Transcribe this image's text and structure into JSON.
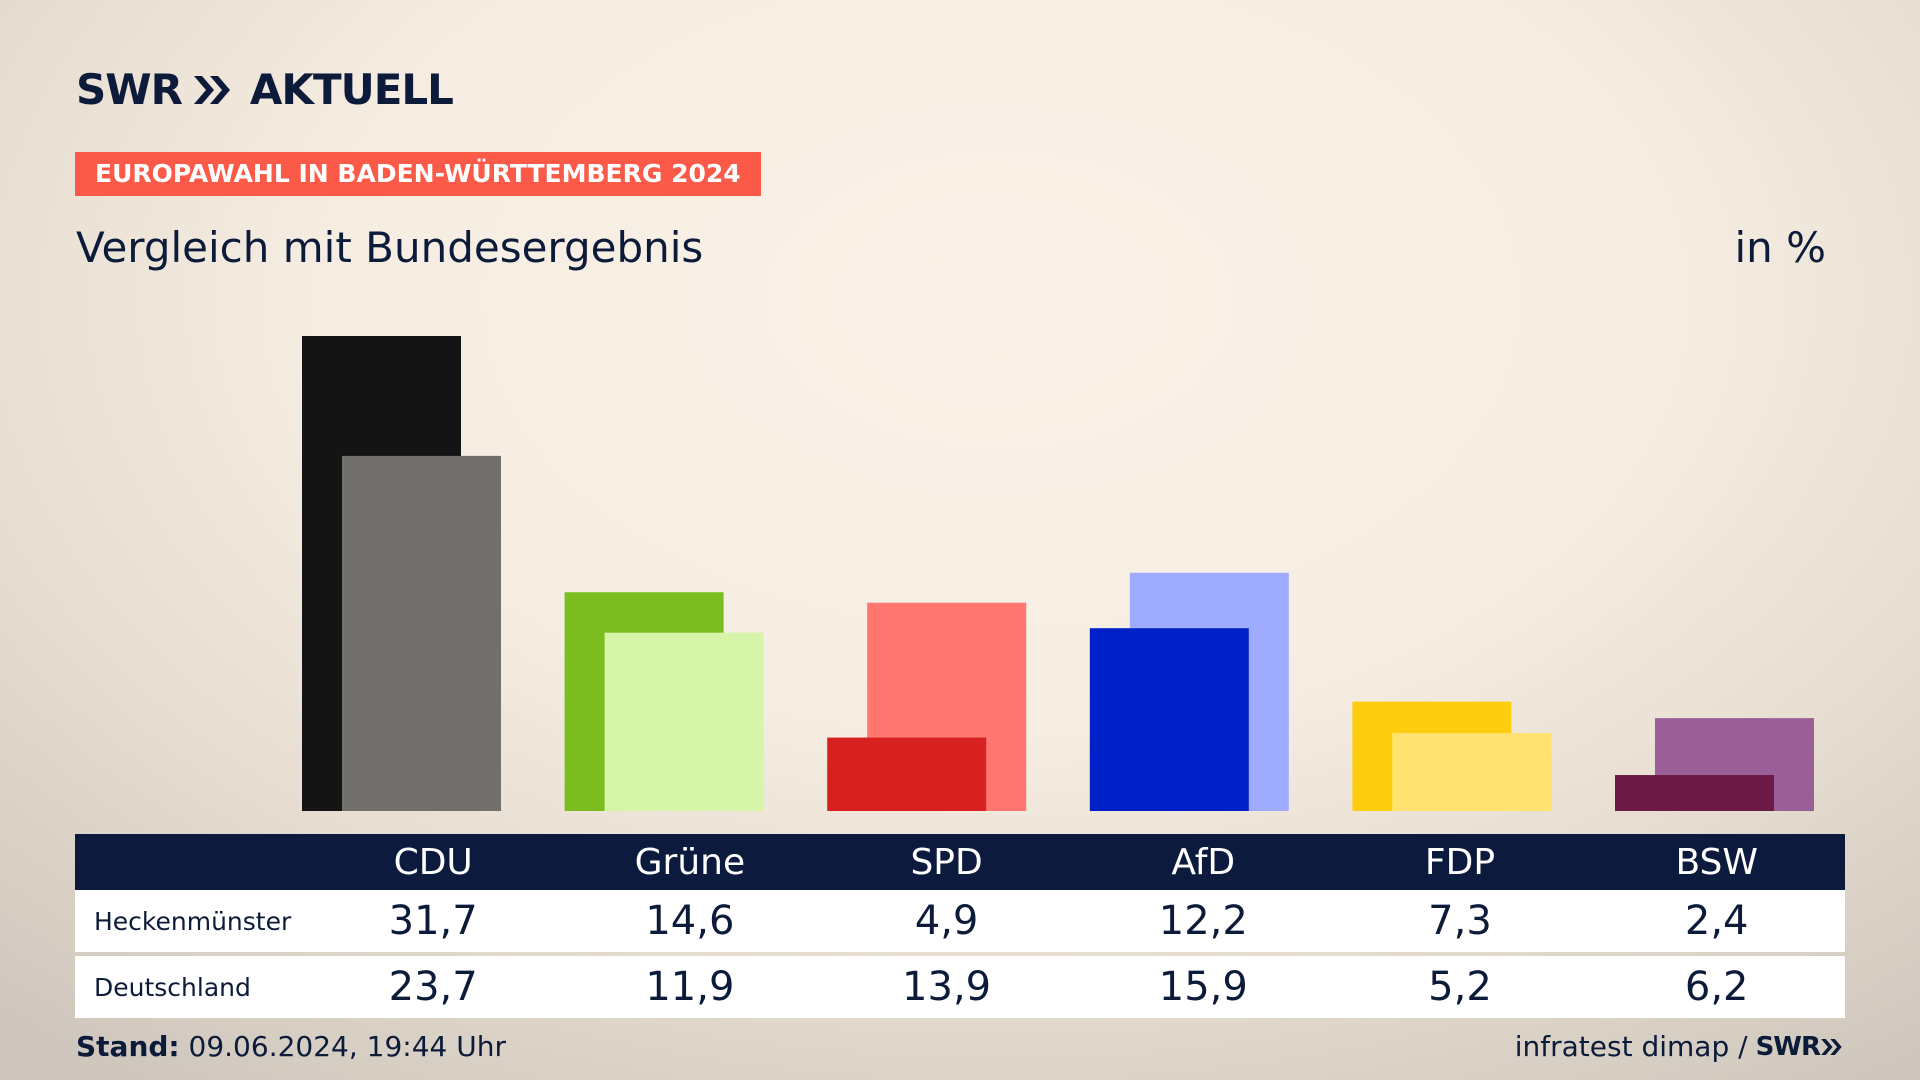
{
  "brand": {
    "swr": "SWR",
    "aktuell": "AKTUELL"
  },
  "badge": "EUROPAWAHL IN BADEN-WÜRTTEMBERG 2024",
  "subtitle": "Vergleich mit Bundesergebnis",
  "unit": "in %",
  "table": {
    "headers": [
      "CDU",
      "Grüne",
      "SPD",
      "AfD",
      "FDP",
      "BSW"
    ],
    "rows": [
      {
        "label": "Heckenmünster",
        "values": [
          "31,7",
          "14,6",
          "4,9",
          "12,2",
          "7,3",
          "2,4"
        ]
      },
      {
        "label": "Deutschland",
        "values": [
          "23,7",
          "11,9",
          "13,9",
          "15,9",
          "5,2",
          "6,2"
        ]
      }
    ]
  },
  "footer": {
    "stand_label": "Stand:",
    "stand_value": "09.06.2024, 19:44 Uhr",
    "source": "infratest dimap /",
    "source_brand": "SWR"
  },
  "colors": {
    "navy": "#0c1b3d",
    "badge": "#fb5a48"
  },
  "chart_data": {
    "type": "bar",
    "categories": [
      "CDU",
      "Grüne",
      "SPD",
      "AfD",
      "FDP",
      "BSW"
    ],
    "series": [
      {
        "name": "Heckenmünster",
        "values": [
          31.7,
          14.6,
          4.9,
          12.2,
          7.3,
          2.4
        ],
        "colors": [
          "#141414",
          "#7bbd1f",
          "#d72020",
          "#0021c8",
          "#ffcd0f",
          "#6a1a45"
        ]
      },
      {
        "name": "Deutschland",
        "values": [
          23.7,
          11.9,
          13.9,
          15.9,
          5.2,
          6.2
        ],
        "colors": [
          "#72706d",
          "#d7f5a8",
          "#ff7570",
          "#9eabff",
          "#ffe270",
          "#9b5f98"
        ]
      }
    ],
    "ylim": [
      0,
      31.7
    ]
  }
}
